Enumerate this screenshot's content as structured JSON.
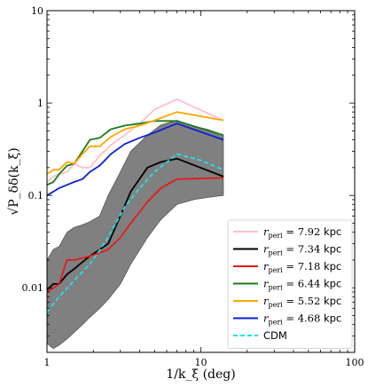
{
  "chart_data": {
    "type": "line",
    "xlabel": "1/k_ξ (deg)",
    "ylabel": "√P_δδ(k_ξ)",
    "xscale": "log",
    "yscale": "log",
    "xlim": [
      1,
      100
    ],
    "ylim": [
      0.002,
      10
    ],
    "x_ticks": [
      {
        "v": 1,
        "label": "1"
      },
      {
        "v": 10,
        "label": "10"
      },
      {
        "v": 100,
        "label": "100"
      }
    ],
    "y_ticks": [
      {
        "v": 0.01,
        "label": "0.01"
      },
      {
        "v": 0.1,
        "label": "0.1"
      },
      {
        "v": 1,
        "label": "1"
      },
      {
        "v": 10,
        "label": "10"
      }
    ],
    "legend_position": "lower-right",
    "band": {
      "color": "#808080",
      "x": [
        1.0,
        1.1,
        1.2,
        1.35,
        1.5,
        1.7,
        1.9,
        2.2,
        2.5,
        3.0,
        3.5,
        4.5,
        5.5,
        7.0,
        9.0,
        11.0,
        14.0
      ],
      "lower": [
        0.0025,
        0.0022,
        0.0024,
        0.0028,
        0.0033,
        0.004,
        0.0048,
        0.006,
        0.0075,
        0.011,
        0.018,
        0.035,
        0.055,
        0.08,
        0.09,
        0.095,
        0.1
      ],
      "upper": [
        0.02,
        0.026,
        0.028,
        0.04,
        0.045,
        0.048,
        0.052,
        0.06,
        0.1,
        0.18,
        0.3,
        0.45,
        0.58,
        0.65,
        0.56,
        0.52,
        0.45
      ]
    },
    "series": [
      {
        "name": "7.92",
        "color": "#ffc0cb",
        "x": [
          1.0,
          1.1,
          1.2,
          1.35,
          1.5,
          1.7,
          1.9,
          2.2,
          2.6,
          3.2,
          4.0,
          5.0,
          7.0,
          14.0
        ],
        "y": [
          0.14,
          0.16,
          0.17,
          0.18,
          0.22,
          0.2,
          0.2,
          0.27,
          0.35,
          0.45,
          0.6,
          0.85,
          1.1,
          0.65
        ]
      },
      {
        "name": "7.34",
        "color": "#000000",
        "x": [
          1.0,
          1.1,
          1.2,
          1.35,
          1.5,
          1.7,
          1.9,
          2.2,
          2.5,
          3.0,
          3.5,
          4.5,
          5.5,
          7.0,
          14.0
        ],
        "y": [
          0.0095,
          0.011,
          0.011,
          0.014,
          0.016,
          0.019,
          0.022,
          0.026,
          0.03,
          0.06,
          0.11,
          0.2,
          0.23,
          0.25,
          0.16
        ]
      },
      {
        "name": "7.18",
        "color": "#e41a1c",
        "x": [
          1.0,
          1.1,
          1.2,
          1.35,
          1.5,
          1.7,
          1.9,
          2.2,
          2.5,
          3.0,
          3.5,
          4.5,
          5.5,
          7.0,
          14.0
        ],
        "y": [
          0.009,
          0.01,
          0.011,
          0.02,
          0.02,
          0.021,
          0.022,
          0.024,
          0.026,
          0.035,
          0.05,
          0.085,
          0.12,
          0.15,
          0.155
        ]
      },
      {
        "name": "6.44",
        "color": "#1a7a1a",
        "x": [
          1.0,
          1.1,
          1.2,
          1.35,
          1.5,
          1.7,
          1.9,
          2.2,
          2.6,
          3.2,
          4.0,
          5.0,
          7.0,
          14.0
        ],
        "y": [
          0.13,
          0.14,
          0.17,
          0.21,
          0.22,
          0.3,
          0.4,
          0.42,
          0.52,
          0.57,
          0.6,
          0.64,
          0.64,
          0.45
        ]
      },
      {
        "name": "5.52",
        "color": "#ffa500",
        "x": [
          1.0,
          1.1,
          1.2,
          1.35,
          1.5,
          1.7,
          1.9,
          2.2,
          2.6,
          3.2,
          4.0,
          5.0,
          7.0,
          14.0
        ],
        "y": [
          0.17,
          0.19,
          0.19,
          0.23,
          0.22,
          0.28,
          0.34,
          0.34,
          0.43,
          0.52,
          0.57,
          0.65,
          0.8,
          0.65
        ]
      },
      {
        "name": "4.68",
        "color": "#0a1fd4",
        "x": [
          1.0,
          1.1,
          1.2,
          1.35,
          1.5,
          1.7,
          1.9,
          2.2,
          2.6,
          3.2,
          4.0,
          5.0,
          7.0,
          14.0
        ],
        "y": [
          0.1,
          0.11,
          0.12,
          0.13,
          0.14,
          0.15,
          0.18,
          0.21,
          0.28,
          0.36,
          0.42,
          0.48,
          0.6,
          0.4
        ]
      },
      {
        "name": "CDM",
        "color": "#22e0e8",
        "dashed": true,
        "x": [
          1.0,
          1.2,
          1.5,
          1.9,
          2.5,
          3.2,
          4.0,
          5.0,
          7.0,
          10.0,
          14.0
        ],
        "y": [
          0.0055,
          0.008,
          0.012,
          0.018,
          0.035,
          0.075,
          0.12,
          0.18,
          0.28,
          0.24,
          0.19
        ]
      }
    ],
    "legend_prefix": "r_peri = ",
    "legend_unit": "kpc",
    "legend_entries": [
      "7.92",
      "7.34",
      "7.18",
      "6.44",
      "5.52",
      "4.68",
      "CDM"
    ]
  }
}
